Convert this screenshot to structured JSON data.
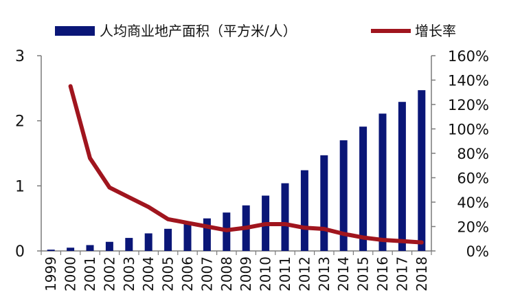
{
  "chart_data": {
    "type": "bar+line",
    "categories": [
      "1999",
      "2000",
      "2001",
      "2002",
      "2003",
      "2004",
      "2005",
      "2006",
      "2007",
      "2008",
      "2009",
      "2010",
      "2011",
      "2012",
      "2013",
      "2014",
      "2015",
      "2016",
      "2017",
      "2018"
    ],
    "series": [
      {
        "name": "人均商业地产面积（平方米/人）",
        "type": "bar",
        "axis": "left",
        "color": "#0a1677",
        "values": [
          0.02,
          0.05,
          0.09,
          0.14,
          0.2,
          0.27,
          0.34,
          0.42,
          0.5,
          0.59,
          0.7,
          0.85,
          1.04,
          1.24,
          1.47,
          1.7,
          1.91,
          2.11,
          2.29,
          2.47
        ]
      },
      {
        "name": "增长率",
        "type": "line",
        "axis": "right",
        "color": "#a0151e",
        "values": [
          null,
          135,
          76,
          52,
          44,
          36,
          26,
          23,
          20,
          17,
          19,
          22,
          22,
          19,
          18,
          14,
          11,
          9,
          8,
          7
        ]
      }
    ],
    "y_left": {
      "min": 0,
      "max": 3,
      "ticks": [
        "0",
        "1",
        "2",
        "3"
      ]
    },
    "y_right": {
      "min": 0,
      "max": 160,
      "ticks": [
        "0%",
        "20%",
        "40%",
        "60%",
        "80%",
        "100%",
        "120%",
        "140%",
        "160%"
      ]
    },
    "title": "",
    "xlabel": "",
    "ylabel": "",
    "legend_position": "top",
    "grid": false
  }
}
